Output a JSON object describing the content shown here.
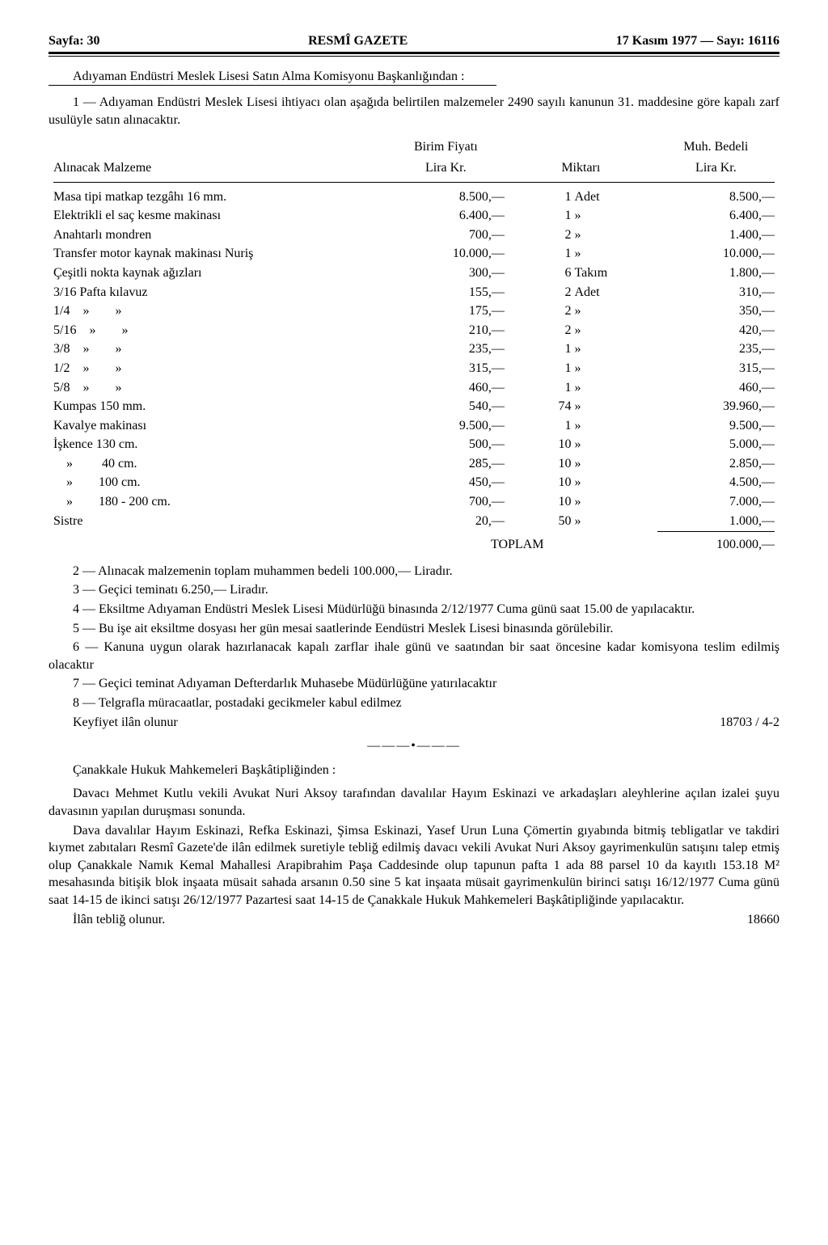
{
  "header": {
    "left": "Sayfa: 30",
    "center": "RESMÎ GAZETE",
    "right": "17 Kasım 1977 — Sayı: 16116"
  },
  "notice1": {
    "source": "Adıyaman Endüstri Meslek Lisesi Satın Alma Komisyonu Başkanlığından :",
    "intro": "1 — Adıyaman Endüstri Meslek Lisesi ihtiyacı olan aşağıda belirtilen malzemeler 2490 sayılı kanunun 31. maddesine göre kapalı zarf usulüyle satın alınacaktır.",
    "headers": {
      "desc": "Alınacak Malzeme",
      "unit_price_top": "Birim Fiyatı",
      "unit_price_bot": "Lira Kr.",
      "qty": "Miktarı",
      "total_top": "Muh. Bedeli",
      "total_bot": "Lira Kr."
    },
    "rows": [
      {
        "desc": "Masa tipi matkap tezgâhı 16 mm.",
        "price": "8.500,—",
        "qty": "1",
        "unit": "Adet",
        "total": "8.500,—"
      },
      {
        "desc": "Elektrikli el saç kesme makinası",
        "price": "6.400,—",
        "qty": "1",
        "unit": "»",
        "total": "6.400,—"
      },
      {
        "desc": "Anahtarlı mondren",
        "price": "700,—",
        "qty": "2",
        "unit": "»",
        "total": "1.400,—"
      },
      {
        "desc": "Transfer motor kaynak makinası Nuriş",
        "price": "10.000,—",
        "qty": "1",
        "unit": "»",
        "total": "10.000,—"
      },
      {
        "desc": "Çeşitli nokta kaynak ağızları",
        "price": "300,—",
        "qty": "6",
        "unit": "Takım",
        "total": "1.800,—"
      },
      {
        "desc": "3/16 Pafta kılavuz",
        "price": "155,—",
        "qty": "2",
        "unit": "Adet",
        "total": "310,—"
      },
      {
        "desc": "1/4 »  »",
        "price": "175,—",
        "qty": "2",
        "unit": "»",
        "total": "350,—"
      },
      {
        "desc": "5/16 »  »",
        "price": "210,—",
        "qty": "2",
        "unit": "»",
        "total": "420,—"
      },
      {
        "desc": "3/8 »  »",
        "price": "235,—",
        "qty": "1",
        "unit": "»",
        "total": "235,—"
      },
      {
        "desc": "1/2 »  »",
        "price": "315,—",
        "qty": "1",
        "unit": "»",
        "total": "315,—"
      },
      {
        "desc": "5/8 »  »",
        "price": "460,—",
        "qty": "1",
        "unit": "»",
        "total": "460,—"
      },
      {
        "desc": "Kumpas 150 mm.",
        "price": "540,—",
        "qty": "74",
        "unit": "»",
        "total": "39.960,—"
      },
      {
        "desc": "Kavalye makinası",
        "price": "9.500,—",
        "qty": "1",
        "unit": "»",
        "total": "9.500,—"
      },
      {
        "desc": "İşkence 130 cm.",
        "price": "500,—",
        "qty": "10",
        "unit": "»",
        "total": "5.000,—"
      },
      {
        "desc": " »   40 cm.",
        "price": "285,—",
        "qty": "10",
        "unit": "»",
        "total": "2.850,—"
      },
      {
        "desc": " »  100 cm.",
        "price": "450,—",
        "qty": "10",
        "unit": "»",
        "total": "4.500,—"
      },
      {
        "desc": " »  180 - 200 cm.",
        "price": "700,—",
        "qty": "10",
        "unit": "»",
        "total": "7.000,—"
      },
      {
        "desc": "Sistre",
        "price": "20,—",
        "qty": "50",
        "unit": "»",
        "total": "1.000,—"
      }
    ],
    "total_label": "TOPLAM",
    "total_value": "100.000,—",
    "paras": [
      "2 — Alınacak malzemenin toplam muhammen bedeli 100.000,— Liradır.",
      "3 — Geçici teminatı 6.250,— Liradır.",
      "4 — Eksiltme Adıyaman Endüstri Meslek Lisesi Müdürlüğü binasında 2/12/1977 Cuma günü saat 15.00 de yapılacaktır.",
      "5 — Bu işe ait eksiltme dosyası her gün mesai saatlerinde Eendüstri Meslek Lisesi binasında görülebilir.",
      "6 — Kanuna uygun olarak hazırlanacak kapalı zarflar ihale günü ve saatından bir saat öncesine kadar komisyona teslim edilmiş olacaktır",
      "7 — Geçici teminat Adıyaman Defterdarlık Muhasebe Müdürlüğüne yatırılacaktır",
      "8 — Telgrafla müracaatlar, postadaki gecikmeler kabul edilmez"
    ],
    "closing": "Keyfiyet ilân olunur",
    "ref": "18703 / 4-2"
  },
  "notice2": {
    "source": "Çanakkale Hukuk Mahkemeleri Başkâtipliğinden :",
    "paras": [
      "Davacı Mehmet Kutlu vekili Avukat Nuri Aksoy tarafından davalılar Hayım Eskinazi ve arkadaşları aleyhlerine açılan izalei şuyu davasının yapılan duruşması sonunda.",
      "Dava davalılar Hayım Eskinazi, Refka Eskinazi, Şimsa Eskinazi, Yasef Urun Luna Çömertin gıyabında bitmiş tebligatlar ve takdiri kıymet zabıtaları Resmî Gazete'de ilân edilmek suretiyle tebliğ edilmiş davacı vekili Avukat Nuri Aksoy gayrimenkulün satışını talep etmiş olup Çanakkale Namık Kemal Mahallesi Arapibrahim Paşa Caddesinde olup tapunun pafta 1 ada 88 parsel 10 da kayıtlı 153.18 M² mesahasında bitişik blok inşaata müsait sahada arsanın 0.50 sine 5 kat inşaata müsait gayrimenkulün birinci satışı 16/12/1977 Cuma günü saat 14-15 de ikinci satışı 26/12/1977 Pazartesi saat 14-15 de Çanakkale Hukuk Mahkemeleri Başkâtipliğinde yapılacaktır."
    ],
    "closing": "İlân tebliğ olunur.",
    "ref": "18660"
  }
}
